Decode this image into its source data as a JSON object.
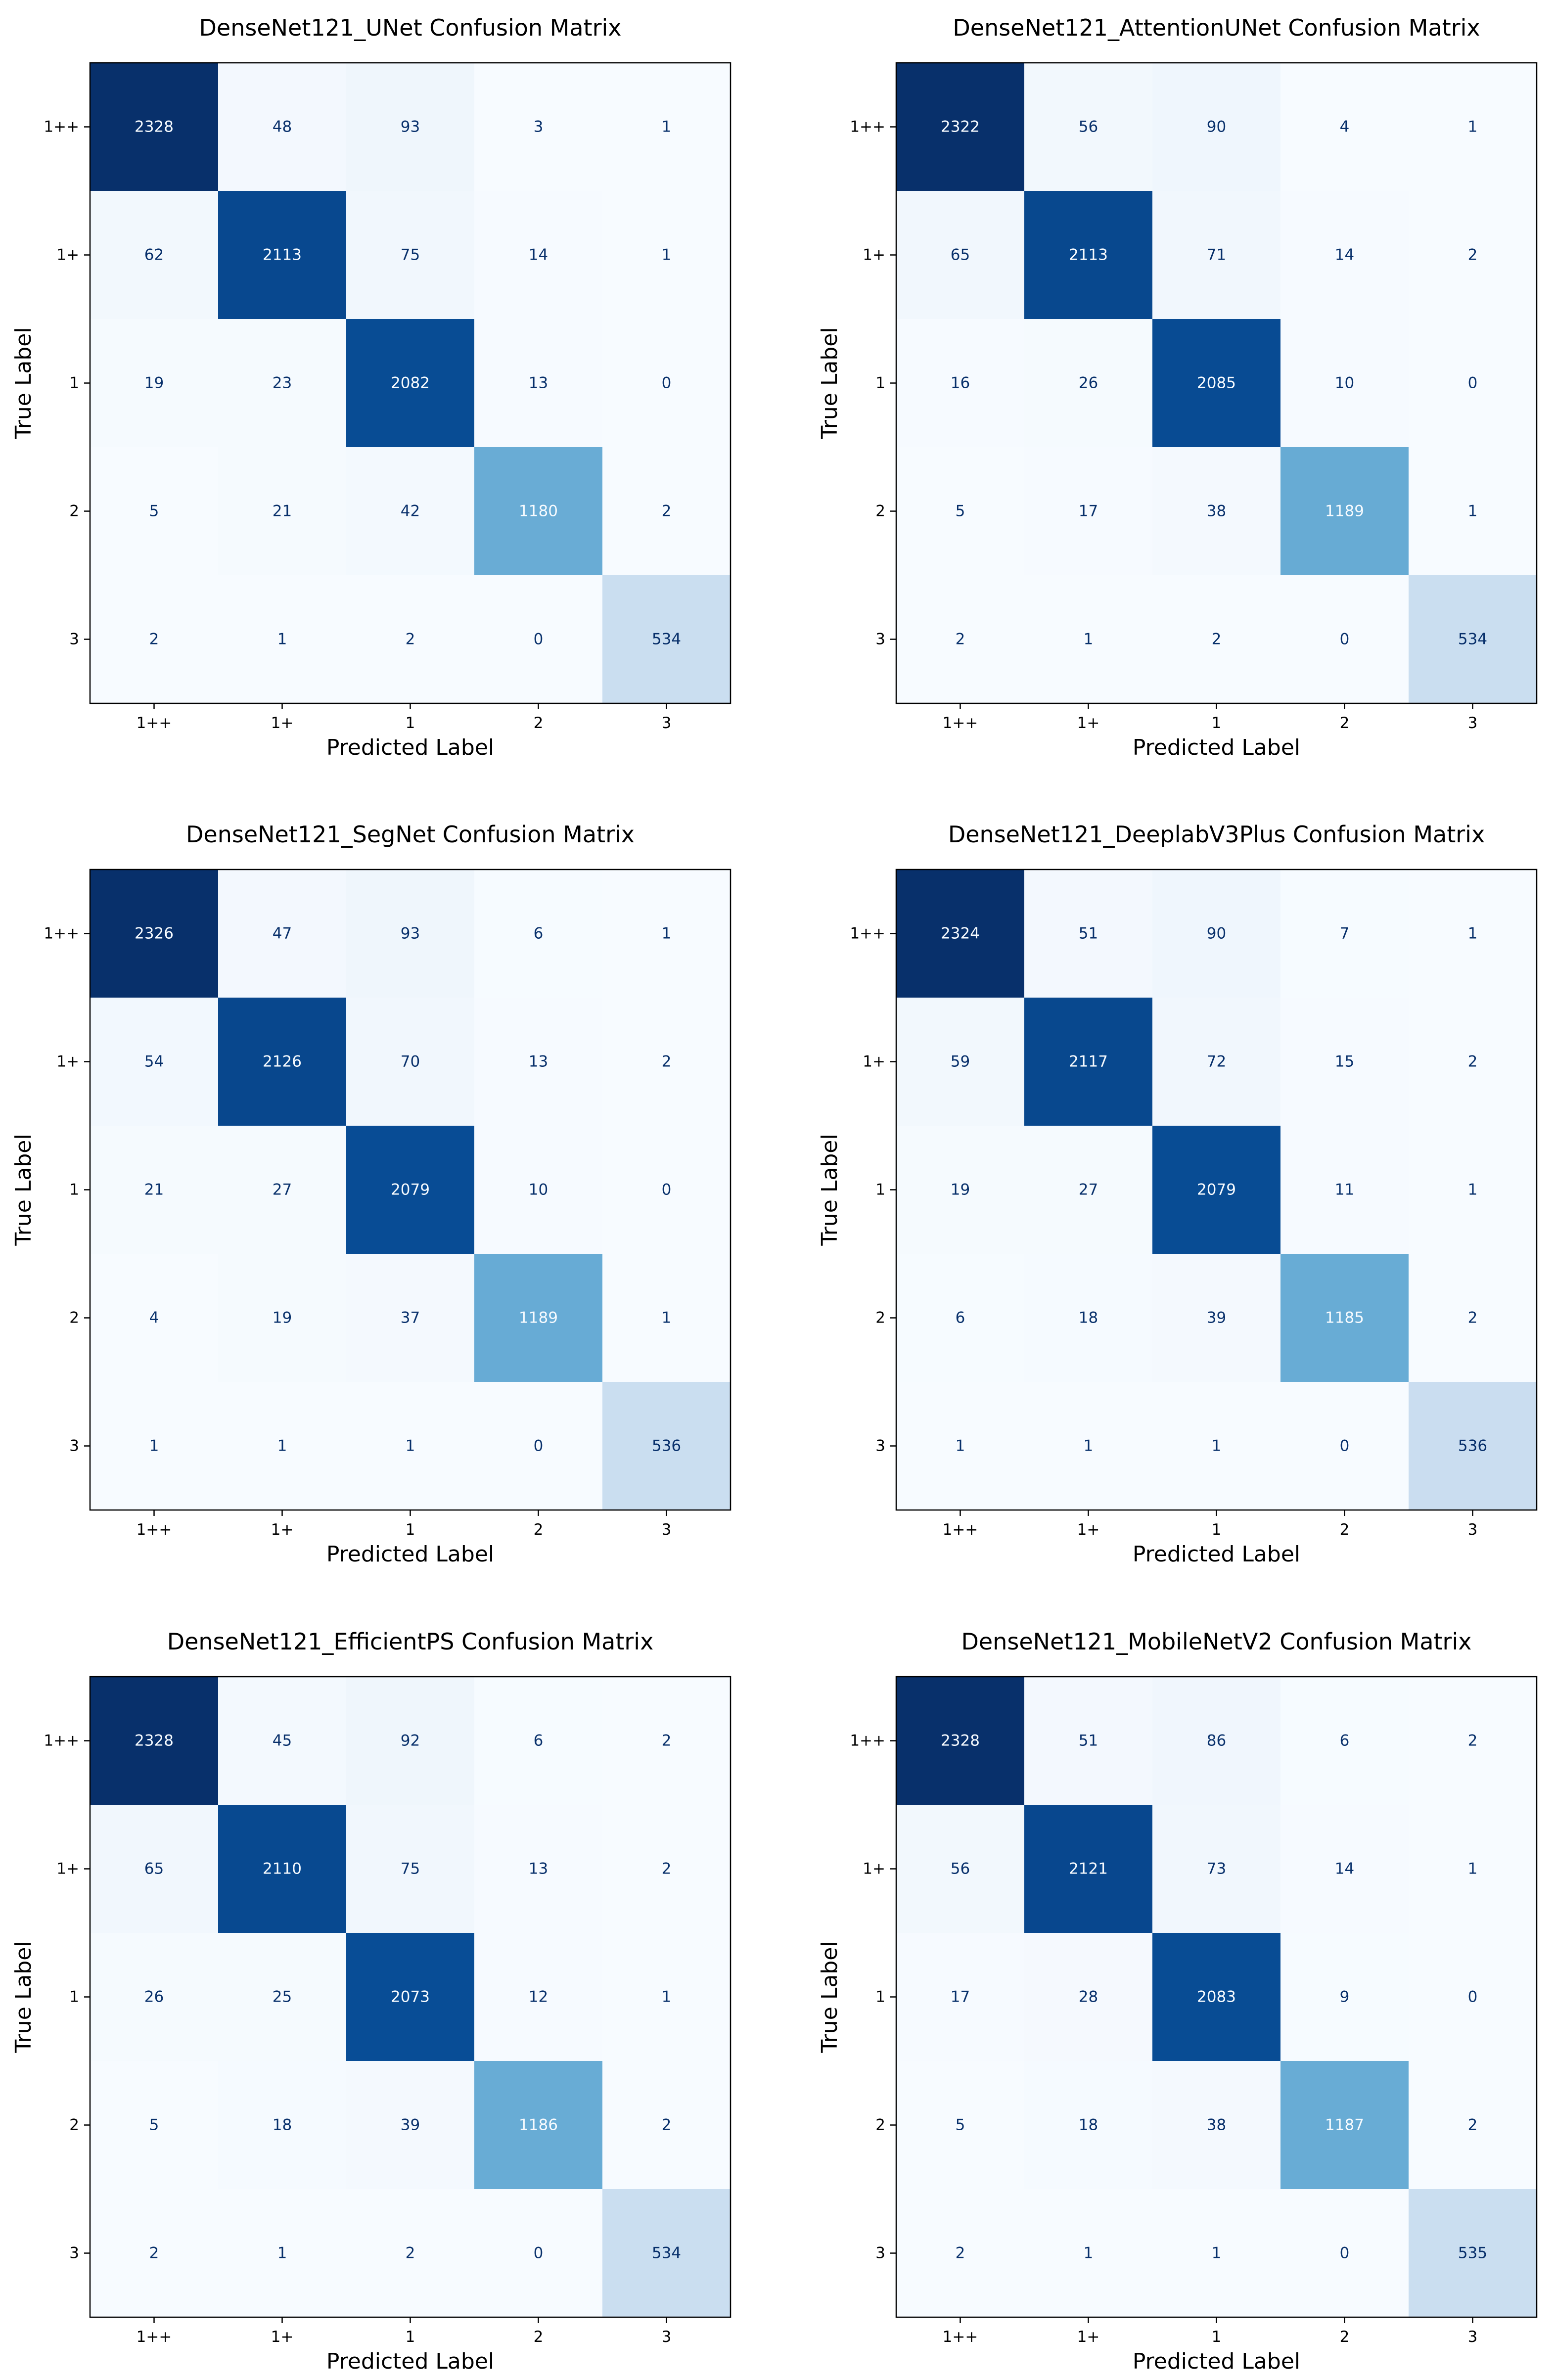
{
  "chart_data": [
    {
      "type": "heatmap",
      "title": "DenseNet121_UNet Confusion Matrix",
      "xlabel": "Predicted Label",
      "ylabel": "True Label",
      "x_categories": [
        "1++",
        "1+",
        "1",
        "2",
        "3"
      ],
      "y_categories": [
        "1++",
        "1+",
        "1",
        "2",
        "3"
      ],
      "values": [
        [
          2328,
          48,
          93,
          3,
          1
        ],
        [
          62,
          2113,
          75,
          14,
          1
        ],
        [
          19,
          23,
          2082,
          13,
          0
        ],
        [
          5,
          21,
          42,
          1180,
          2
        ],
        [
          2,
          1,
          2,
          0,
          534
        ]
      ],
      "colormap": "Blues"
    },
    {
      "type": "heatmap",
      "title": "DenseNet121_AttentionUNet Confusion Matrix",
      "xlabel": "Predicted Label",
      "ylabel": "True Label",
      "x_categories": [
        "1++",
        "1+",
        "1",
        "2",
        "3"
      ],
      "y_categories": [
        "1++",
        "1+",
        "1",
        "2",
        "3"
      ],
      "values": [
        [
          2322,
          56,
          90,
          4,
          1
        ],
        [
          65,
          2113,
          71,
          14,
          2
        ],
        [
          16,
          26,
          2085,
          10,
          0
        ],
        [
          5,
          17,
          38,
          1189,
          1
        ],
        [
          2,
          1,
          2,
          0,
          534
        ]
      ],
      "colormap": "Blues"
    },
    {
      "type": "heatmap",
      "title": "DenseNet121_SegNet Confusion Matrix",
      "xlabel": "Predicted Label",
      "ylabel": "True Label",
      "x_categories": [
        "1++",
        "1+",
        "1",
        "2",
        "3"
      ],
      "y_categories": [
        "1++",
        "1+",
        "1",
        "2",
        "3"
      ],
      "values": [
        [
          2326,
          47,
          93,
          6,
          1
        ],
        [
          54,
          2126,
          70,
          13,
          2
        ],
        [
          21,
          27,
          2079,
          10,
          0
        ],
        [
          4,
          19,
          37,
          1189,
          1
        ],
        [
          1,
          1,
          1,
          0,
          536
        ]
      ],
      "colormap": "Blues"
    },
    {
      "type": "heatmap",
      "title": "DenseNet121_DeeplabV3Plus Confusion Matrix",
      "xlabel": "Predicted Label",
      "ylabel": "True Label",
      "x_categories": [
        "1++",
        "1+",
        "1",
        "2",
        "3"
      ],
      "y_categories": [
        "1++",
        "1+",
        "1",
        "2",
        "3"
      ],
      "values": [
        [
          2324,
          51,
          90,
          7,
          1
        ],
        [
          59,
          2117,
          72,
          15,
          2
        ],
        [
          19,
          27,
          2079,
          11,
          1
        ],
        [
          6,
          18,
          39,
          1185,
          2
        ],
        [
          1,
          1,
          1,
          0,
          536
        ]
      ],
      "colormap": "Blues"
    },
    {
      "type": "heatmap",
      "title": "DenseNet121_EfficientPS Confusion Matrix",
      "xlabel": "Predicted Label",
      "ylabel": "True Label",
      "x_categories": [
        "1++",
        "1+",
        "1",
        "2",
        "3"
      ],
      "y_categories": [
        "1++",
        "1+",
        "1",
        "2",
        "3"
      ],
      "values": [
        [
          2328,
          45,
          92,
          6,
          2
        ],
        [
          65,
          2110,
          75,
          13,
          2
        ],
        [
          26,
          25,
          2073,
          12,
          1
        ],
        [
          5,
          18,
          39,
          1186,
          2
        ],
        [
          2,
          1,
          2,
          0,
          534
        ]
      ],
      "colormap": "Blues"
    },
    {
      "type": "heatmap",
      "title": "DenseNet121_MobileNetV2 Confusion Matrix",
      "xlabel": "Predicted Label",
      "ylabel": "True Label",
      "x_categories": [
        "1++",
        "1+",
        "1",
        "2",
        "3"
      ],
      "y_categories": [
        "1++",
        "1+",
        "1",
        "2",
        "3"
      ],
      "values": [
        [
          2328,
          51,
          86,
          6,
          2
        ],
        [
          56,
          2121,
          73,
          14,
          1
        ],
        [
          17,
          28,
          2083,
          9,
          0
        ],
        [
          5,
          18,
          38,
          1187,
          2
        ],
        [
          2,
          1,
          1,
          0,
          535
        ]
      ],
      "colormap": "Blues"
    }
  ]
}
